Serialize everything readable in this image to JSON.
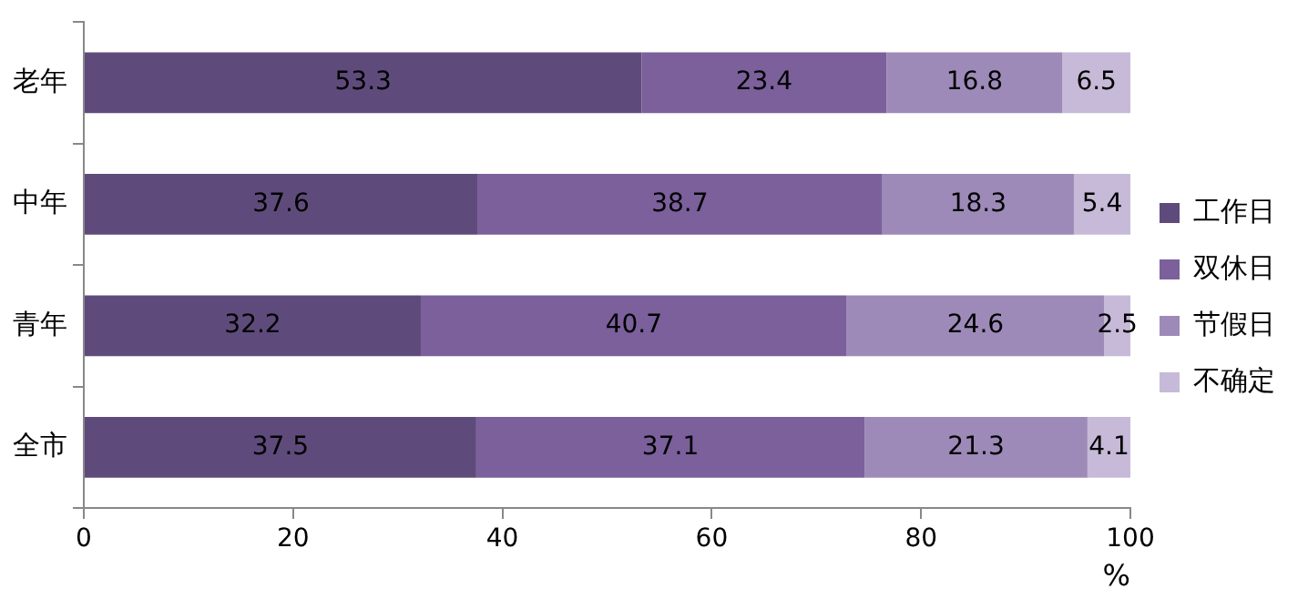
{
  "chart_data": {
    "type": "bar",
    "orientation": "horizontal",
    "stacked": true,
    "categories": [
      "老年",
      "中年",
      "青年",
      "全市"
    ],
    "series": [
      {
        "name": "工作日",
        "color": "#5f4b7b",
        "values": [
          53.3,
          37.6,
          32.2,
          37.5
        ]
      },
      {
        "name": "双休日",
        "color": "#7b609b",
        "values": [
          23.4,
          38.7,
          40.7,
          37.1
        ]
      },
      {
        "name": "节假日",
        "color": "#9d8ab8",
        "values": [
          16.8,
          18.3,
          24.6,
          21.3
        ]
      },
      {
        "name": "不确定",
        "color": "#c6bad8",
        "values": [
          6.5,
          5.4,
          2.5,
          4.1
        ]
      }
    ],
    "xlim": [
      0,
      100
    ],
    "xticks": [
      0,
      20,
      40,
      60,
      80,
      100
    ],
    "xlabel": "%",
    "grid": false,
    "legend": "right",
    "data_labels": true
  }
}
